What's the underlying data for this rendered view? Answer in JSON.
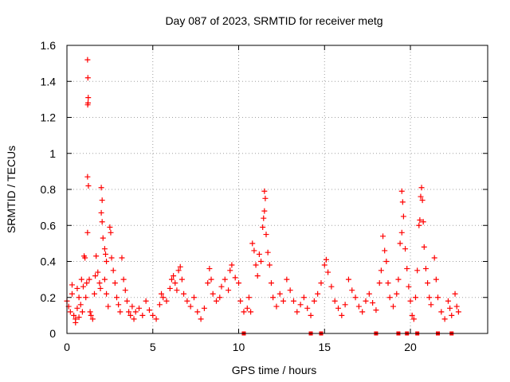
{
  "chart_data": {
    "type": "scatter",
    "title": "Day 087 of 2023, SRMTID for receiver metg",
    "xlabel": "GPS time / hours",
    "ylabel": "SRMTID / TECUs",
    "xlim": [
      0,
      24.5
    ],
    "ylim": [
      0,
      1.6
    ],
    "x_ticks": [
      0,
      5,
      10,
      15,
      20
    ],
    "x_tick_labels": [
      "0",
      "5",
      "10",
      "15",
      "20"
    ],
    "y_ticks": [
      0,
      0.2,
      0.4,
      0.6,
      0.8,
      1.0,
      1.2,
      1.4,
      1.6
    ],
    "y_tick_labels": [
      "0",
      "0.2",
      "0.4",
      "0.6",
      "0.8",
      "1",
      "1.2",
      "1.4",
      "1.6"
    ],
    "grid": true,
    "marker": "plus",
    "point_color": "#ff0000",
    "gap_marker_color": "#ff0000",
    "series": [
      {
        "name": "SRMTID",
        "points": [
          [
            0.0,
            0.18
          ],
          [
            0.1,
            0.15
          ],
          [
            0.2,
            0.12
          ],
          [
            0.3,
            0.22
          ],
          [
            0.4,
            0.1
          ],
          [
            0.5,
            0.08
          ],
          [
            0.6,
            0.14
          ],
          [
            0.7,
            0.2
          ],
          [
            0.8,
            0.16
          ],
          [
            0.9,
            0.12
          ],
          [
            0.3,
            0.27
          ],
          [
            0.5,
            0.06
          ],
          [
            0.6,
            0.25
          ],
          [
            0.7,
            0.09
          ],
          [
            0.85,
            0.3
          ],
          [
            0.95,
            0.26
          ],
          [
            1.0,
            0.43
          ],
          [
            1.05,
            0.42
          ],
          [
            1.1,
            0.2
          ],
          [
            1.15,
            0.28
          ],
          [
            1.2,
            1.52
          ],
          [
            1.22,
            1.42
          ],
          [
            1.24,
            1.31
          ],
          [
            1.21,
            1.27
          ],
          [
            1.23,
            1.28
          ],
          [
            1.2,
            0.87
          ],
          [
            1.25,
            0.82
          ],
          [
            1.2,
            0.56
          ],
          [
            1.3,
            0.3
          ],
          [
            1.35,
            0.12
          ],
          [
            1.4,
            0.1
          ],
          [
            1.5,
            0.08
          ],
          [
            1.6,
            0.22
          ],
          [
            1.65,
            0.32
          ],
          [
            1.7,
            0.43
          ],
          [
            1.8,
            0.34
          ],
          [
            1.9,
            0.28
          ],
          [
            1.95,
            0.25
          ],
          [
            2.0,
            0.81
          ],
          [
            2.05,
            0.74
          ],
          [
            2.0,
            0.67
          ],
          [
            2.05,
            0.62
          ],
          [
            2.1,
            0.53
          ],
          [
            2.2,
            0.47
          ],
          [
            2.25,
            0.44
          ],
          [
            2.3,
            0.4
          ],
          [
            2.2,
            0.3
          ],
          [
            2.3,
            0.22
          ],
          [
            2.4,
            0.15
          ],
          [
            2.5,
            0.59
          ],
          [
            2.55,
            0.56
          ],
          [
            2.6,
            0.42
          ],
          [
            2.7,
            0.35
          ],
          [
            2.8,
            0.28
          ],
          [
            2.9,
            0.2
          ],
          [
            3.0,
            0.16
          ],
          [
            3.1,
            0.12
          ],
          [
            3.2,
            0.42
          ],
          [
            3.3,
            0.3
          ],
          [
            3.4,
            0.24
          ],
          [
            3.5,
            0.18
          ],
          [
            3.6,
            0.12
          ],
          [
            3.7,
            0.1
          ],
          [
            3.8,
            0.15
          ],
          [
            3.9,
            0.08
          ],
          [
            4.0,
            0.12
          ],
          [
            4.2,
            0.14
          ],
          [
            4.4,
            0.1
          ],
          [
            4.6,
            0.18
          ],
          [
            4.8,
            0.13
          ],
          [
            5.0,
            0.1
          ],
          [
            5.2,
            0.08
          ],
          [
            5.4,
            0.16
          ],
          [
            5.5,
            0.22
          ],
          [
            5.6,
            0.2
          ],
          [
            5.8,
            0.18
          ],
          [
            6.0,
            0.25
          ],
          [
            6.1,
            0.3
          ],
          [
            6.2,
            0.32
          ],
          [
            6.3,
            0.28
          ],
          [
            6.4,
            0.24
          ],
          [
            6.5,
            0.35
          ],
          [
            6.6,
            0.37
          ],
          [
            6.7,
            0.3
          ],
          [
            6.8,
            0.22
          ],
          [
            7.0,
            0.18
          ],
          [
            7.2,
            0.15
          ],
          [
            7.4,
            0.2
          ],
          [
            7.6,
            0.12
          ],
          [
            7.8,
            0.08
          ],
          [
            8.0,
            0.14
          ],
          [
            8.2,
            0.28
          ],
          [
            8.3,
            0.36
          ],
          [
            8.4,
            0.3
          ],
          [
            8.5,
            0.22
          ],
          [
            8.7,
            0.18
          ],
          [
            8.9,
            0.2
          ],
          [
            9.0,
            0.26
          ],
          [
            9.2,
            0.3
          ],
          [
            9.4,
            0.24
          ],
          [
            9.5,
            0.35
          ],
          [
            9.6,
            0.38
          ],
          [
            9.8,
            0.31
          ],
          [
            10.0,
            0.28
          ],
          [
            10.1,
            0.18
          ],
          [
            10.3,
            0.12
          ],
          [
            10.5,
            0.14
          ],
          [
            10.6,
            0.2
          ],
          [
            10.7,
            0.12
          ],
          [
            10.8,
            0.5
          ],
          [
            10.9,
            0.46
          ],
          [
            11.0,
            0.38
          ],
          [
            11.1,
            0.32
          ],
          [
            11.2,
            0.44
          ],
          [
            11.3,
            0.4
          ],
          [
            11.4,
            0.59
          ],
          [
            11.45,
            0.64
          ],
          [
            11.5,
            0.79
          ],
          [
            11.55,
            0.75
          ],
          [
            11.5,
            0.68
          ],
          [
            11.6,
            0.55
          ],
          [
            11.7,
            0.45
          ],
          [
            11.8,
            0.38
          ],
          [
            11.9,
            0.28
          ],
          [
            12.0,
            0.2
          ],
          [
            12.2,
            0.15
          ],
          [
            12.4,
            0.22
          ],
          [
            12.6,
            0.18
          ],
          [
            12.8,
            0.3
          ],
          [
            13.0,
            0.24
          ],
          [
            13.2,
            0.18
          ],
          [
            13.4,
            0.12
          ],
          [
            13.6,
            0.16
          ],
          [
            13.8,
            0.2
          ],
          [
            14.0,
            0.14
          ],
          [
            14.2,
            0.1
          ],
          [
            14.4,
            0.18
          ],
          [
            14.6,
            0.22
          ],
          [
            14.8,
            0.28
          ],
          [
            15.0,
            0.38
          ],
          [
            15.1,
            0.41
          ],
          [
            15.2,
            0.34
          ],
          [
            15.4,
            0.26
          ],
          [
            15.6,
            0.18
          ],
          [
            15.8,
            0.14
          ],
          [
            16.0,
            0.1
          ],
          [
            16.2,
            0.16
          ],
          [
            16.4,
            0.3
          ],
          [
            16.6,
            0.24
          ],
          [
            16.8,
            0.2
          ],
          [
            17.0,
            0.15
          ],
          [
            17.2,
            0.12
          ],
          [
            17.4,
            0.18
          ],
          [
            17.6,
            0.22
          ],
          [
            17.8,
            0.17
          ],
          [
            18.0,
            0.13
          ],
          [
            18.2,
            0.28
          ],
          [
            18.3,
            0.35
          ],
          [
            18.4,
            0.54
          ],
          [
            18.5,
            0.46
          ],
          [
            18.6,
            0.4
          ],
          [
            18.7,
            0.28
          ],
          [
            18.8,
            0.2
          ],
          [
            19.0,
            0.15
          ],
          [
            19.2,
            0.22
          ],
          [
            19.3,
            0.3
          ],
          [
            19.4,
            0.5
          ],
          [
            19.5,
            0.79
          ],
          [
            19.55,
            0.73
          ],
          [
            19.6,
            0.65
          ],
          [
            19.5,
            0.56
          ],
          [
            19.7,
            0.47
          ],
          [
            19.8,
            0.36
          ],
          [
            19.9,
            0.26
          ],
          [
            20.0,
            0.18
          ],
          [
            20.1,
            0.1
          ],
          [
            20.2,
            0.08
          ],
          [
            20.3,
            0.2
          ],
          [
            20.4,
            0.35
          ],
          [
            20.5,
            0.6
          ],
          [
            20.55,
            0.63
          ],
          [
            20.6,
            0.76
          ],
          [
            20.65,
            0.81
          ],
          [
            20.7,
            0.74
          ],
          [
            20.75,
            0.62
          ],
          [
            20.8,
            0.48
          ],
          [
            20.9,
            0.36
          ],
          [
            21.0,
            0.28
          ],
          [
            21.1,
            0.2
          ],
          [
            21.2,
            0.16
          ],
          [
            21.4,
            0.42
          ],
          [
            21.5,
            0.3
          ],
          [
            21.6,
            0.2
          ],
          [
            21.8,
            0.12
          ],
          [
            22.0,
            0.08
          ],
          [
            22.2,
            0.18
          ],
          [
            22.3,
            0.14
          ],
          [
            22.4,
            0.1
          ],
          [
            22.6,
            0.22
          ],
          [
            22.7,
            0.15
          ],
          [
            22.8,
            0.12
          ]
        ]
      }
    ],
    "gap_markers_x": [
      10.3,
      14.2,
      14.8,
      18.0,
      19.3,
      19.8,
      20.4,
      21.6,
      22.4
    ]
  }
}
